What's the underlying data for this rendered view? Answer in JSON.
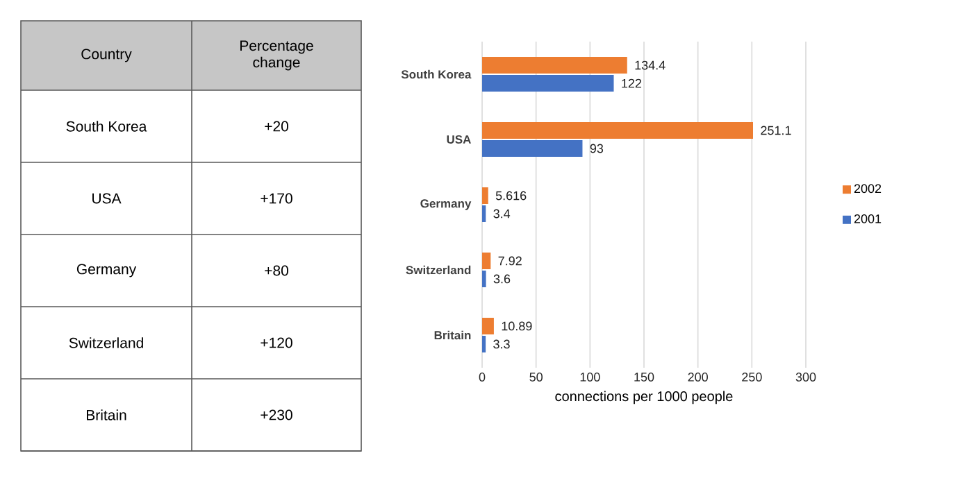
{
  "chart_data": [
    {
      "type": "other",
      "xlabel": "Country",
      "ylabel": "Percentage change",
      "categories": [
        "South Korea",
        "USA",
        "Germany",
        "Switzerland",
        "Britain"
      ],
      "value_labels": [
        "+20",
        "+170",
        "+80",
        "+120",
        "+230"
      ]
    },
    {
      "type": "bar",
      "orientation": "horizontal",
      "xlabel": "connections per 1000 people",
      "categories": [
        "South Korea",
        "USA",
        "Germany",
        "Switzerland",
        "Britain"
      ],
      "series": [
        {
          "name": "2002",
          "color": "#ed7d31",
          "values": [
            134.4,
            251.1,
            5.616,
            7.92,
            10.89
          ]
        },
        {
          "name": "2001",
          "color": "#4472c4",
          "values": [
            122,
            93,
            3.4,
            3.6,
            3.3
          ]
        }
      ],
      "xlim": [
        0,
        300
      ],
      "xticks": [
        0,
        50,
        100,
        150,
        200,
        250,
        300
      ],
      "grid": "x",
      "legend": "right",
      "data_labels": true
    }
  ]
}
